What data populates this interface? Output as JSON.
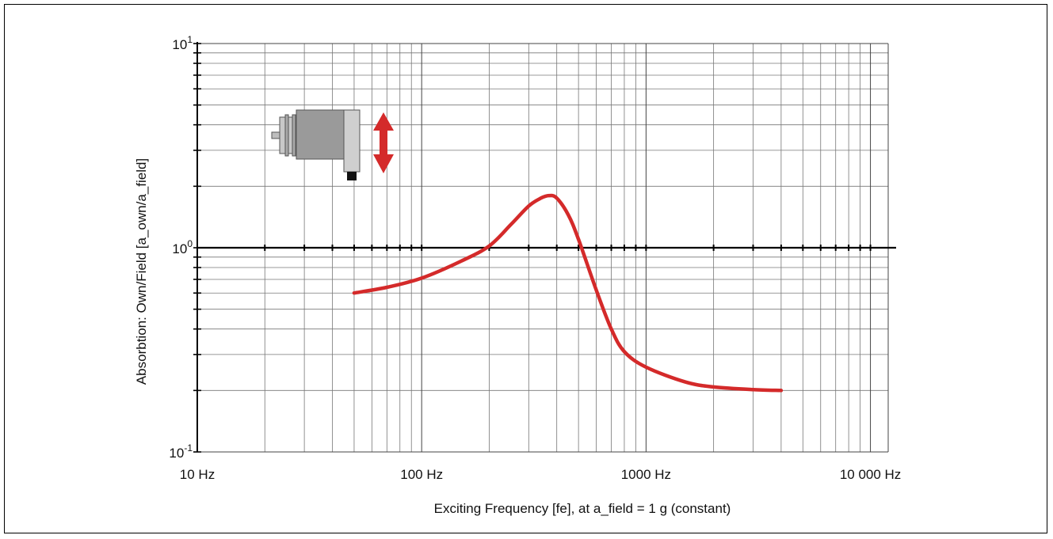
{
  "chart_data": {
    "type": "line",
    "title": "",
    "xlabel": "Exciting Frequency [fe], at a_field = 1 g (constant)",
    "ylabel": "Absorbtion: Own/Field [a_own/a_field]",
    "x_scale": "log",
    "y_scale": "log",
    "xlim": [
      10,
      12000
    ],
    "ylim": [
      0.1,
      10
    ],
    "grid": true,
    "x_ticks": [
      {
        "value": 10,
        "label": "10 Hz"
      },
      {
        "value": 100,
        "label": "100 Hz"
      },
      {
        "value": 1000,
        "label": "1000 Hz"
      },
      {
        "value": 10000,
        "label": "10 000 Hz"
      }
    ],
    "y_ticks": [
      {
        "value": 0.1,
        "base": "10",
        "exp": "-1"
      },
      {
        "value": 1,
        "base": "10",
        "exp": "0"
      },
      {
        "value": 10,
        "base": "10",
        "exp": "1"
      }
    ],
    "reference_line": {
      "y": 1
    },
    "series": [
      {
        "color": "#d42a2a",
        "points": [
          [
            50,
            0.6
          ],
          [
            70,
            0.64
          ],
          [
            100,
            0.71
          ],
          [
            150,
            0.86
          ],
          [
            200,
            1.02
          ],
          [
            250,
            1.3
          ],
          [
            300,
            1.6
          ],
          [
            340,
            1.75
          ],
          [
            370,
            1.8
          ],
          [
            400,
            1.75
          ],
          [
            450,
            1.45
          ],
          [
            500,
            1.1
          ],
          [
            600,
            0.62
          ],
          [
            700,
            0.4
          ],
          [
            800,
            0.31
          ],
          [
            1000,
            0.26
          ],
          [
            1500,
            0.22
          ],
          [
            2000,
            0.208
          ],
          [
            3000,
            0.202
          ],
          [
            4000,
            0.2
          ]
        ]
      }
    ],
    "annotation": {
      "icon": "sensor-with-vertical-arrow-icon",
      "arrow_color": "#d42a2a"
    }
  }
}
